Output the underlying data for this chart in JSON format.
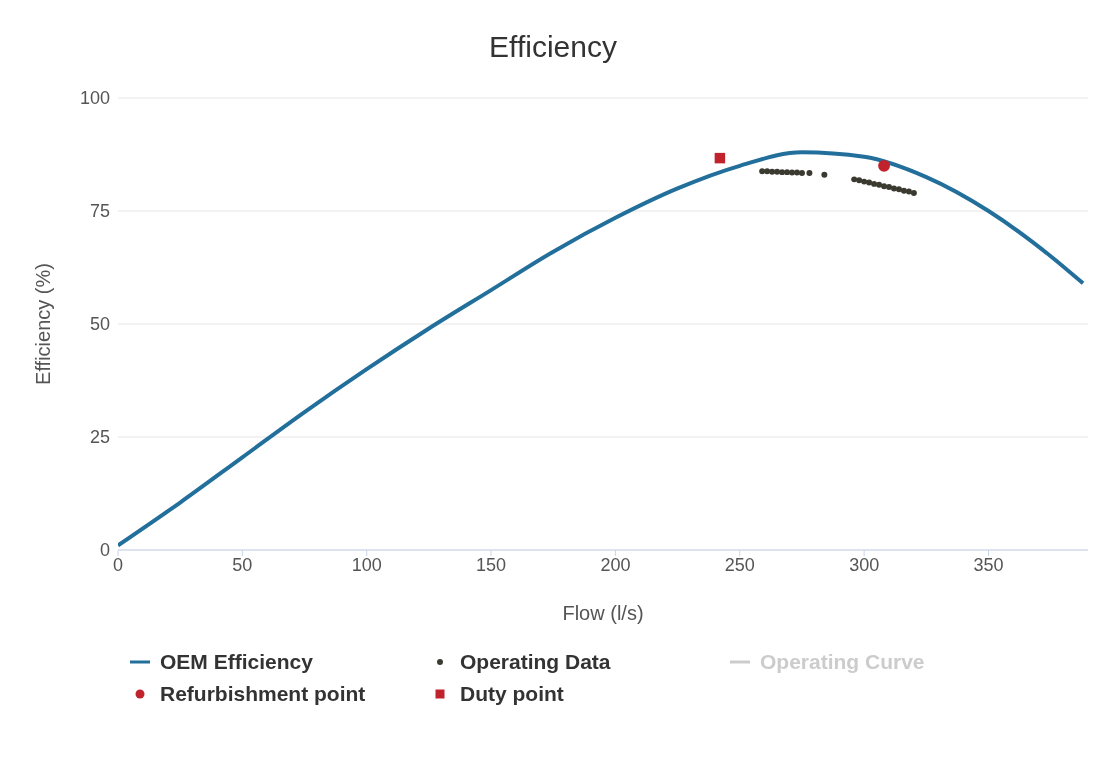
{
  "chart_data": {
    "type": "line",
    "title": "Efficiency",
    "xlabel": "Flow (l/s)",
    "ylabel": "Efficiency (%)",
    "xlim": [
      0,
      390
    ],
    "xticks": [
      0,
      50,
      100,
      150,
      200,
      250,
      300,
      350
    ],
    "ylim": [
      0,
      100
    ],
    "yticks": [
      0,
      25,
      50,
      75,
      100
    ],
    "grid": "y",
    "legend": "bottom",
    "series": [
      {
        "name": "OEM Efficiency",
        "marker": "none",
        "color": "#236f9c",
        "x": [
          0,
          25,
          50,
          75,
          100,
          125,
          150,
          175,
          200,
          225,
          250,
          275,
          300,
          325,
          350,
          375,
          388
        ],
        "values": [
          1,
          10.5,
          20.5,
          30.5,
          40,
          49,
          57.5,
          66,
          73.5,
          80,
          85,
          88,
          87,
          82.5,
          75,
          65,
          59
        ]
      },
      {
        "name": "Operating Data",
        "type": "scatter",
        "marker": "circle",
        "color": "#3a3a30",
        "x": [
          259,
          261,
          263,
          265,
          267,
          269,
          271,
          273,
          275,
          278,
          284,
          296,
          298,
          300,
          302,
          304,
          306,
          308,
          310,
          312,
          314,
          316,
          318,
          320
        ],
        "values": [
          83.8,
          83.8,
          83.7,
          83.7,
          83.6,
          83.6,
          83.5,
          83.5,
          83.4,
          83.4,
          83,
          82,
          81.8,
          81.5,
          81.3,
          81,
          80.8,
          80.5,
          80.3,
          80,
          79.8,
          79.5,
          79.3,
          79
        ]
      },
      {
        "name": "Operating Curve",
        "type": "line",
        "marker": "none",
        "color": "#cccccc"
      },
      {
        "name": "Refurbishment point",
        "type": "scatter",
        "marker": "circle",
        "color": "#c0232b",
        "x": [
          308
        ],
        "values": [
          85
        ]
      },
      {
        "name": "Duty point",
        "type": "scatter",
        "marker": "square",
        "color": "#c0232b",
        "x": [
          242
        ],
        "values": [
          86.7
        ]
      }
    ]
  }
}
